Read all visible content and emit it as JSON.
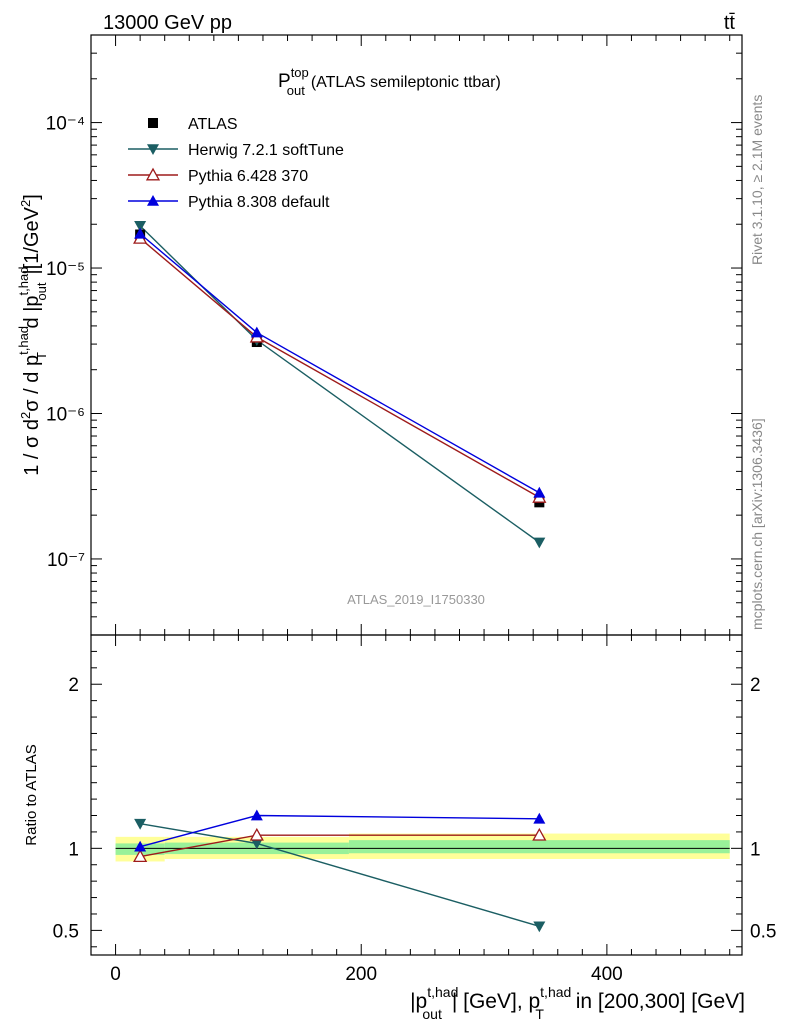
{
  "header": {
    "energy_label": "13000 GeV pp",
    "process_label": "tt̄"
  },
  "side_text": {
    "rivet": "Rivet 3.1.10, ≥ 2.1M events",
    "mcplots": "mcplots.cern.ch [arXiv:1306.3436]"
  },
  "chart_data": [
    {
      "type": "scatter",
      "panel": "main",
      "title_main": "P",
      "title_sup": "top",
      "title_sub": "out",
      "title_rest": "(ATLAS semileptonic ttbar)",
      "analysis_id": "ATLAS_2019_I1750330",
      "ylabel": "1 / σ d²σ / d p_T^t,had d |p_out^t,had| [1/GeV²]",
      "y_scale": "log",
      "ylim": [
        3e-08,
        0.0004
      ],
      "xlim": [
        -20,
        510
      ],
      "yticks_major": [
        "10⁻⁷",
        "10⁻⁶",
        "10⁻⁵",
        "10⁻⁴"
      ],
      "x": [
        20,
        115,
        345
      ],
      "series": [
        {
          "name": "ATLAS",
          "color": "#000000",
          "marker": "square",
          "values": [
            1.7e-05,
            3.1e-06,
            2.45e-07
          ]
        },
        {
          "name": "Herwig 7.2.1 softTune",
          "color": "#1b5e63",
          "marker": "triangle-down",
          "values": [
            1.95e-05,
            3.2e-06,
            1.3e-07
          ]
        },
        {
          "name": "Pythia 6.428 370",
          "color": "#9e1b1b",
          "marker": "triangle-up-open",
          "values": [
            1.6e-05,
            3.35e-06,
            2.65e-07
          ]
        },
        {
          "name": "Pythia 8.308 default",
          "color": "#0000dd",
          "marker": "triangle-up",
          "values": [
            1.72e-05,
            3.6e-06,
            2.85e-07
          ]
        }
      ],
      "legend_position": "top-left"
    },
    {
      "type": "scatter",
      "panel": "ratio",
      "ylabel": "Ratio to ATLAS",
      "ylim": [
        0.35,
        2.3
      ],
      "yticks": [
        0.5,
        1,
        2
      ],
      "ytick_labels": [
        "0.5",
        "1",
        "2"
      ],
      "xlim": [
        -20,
        510
      ],
      "xticks": [
        0,
        200,
        400
      ],
      "xtick_labels": [
        "0",
        "200",
        "400"
      ],
      "xlabel": "|p_out^t,had| [GeV], p_T^t,had in [200,300] [GeV]",
      "bands": [
        {
          "x": [
            0,
            40
          ],
          "yellow": [
            0.92,
            1.07
          ],
          "green": [
            0.96,
            1.03
          ]
        },
        {
          "x": [
            40,
            190
          ],
          "yellow": [
            0.935,
            1.07
          ],
          "green": [
            0.965,
            1.035
          ]
        },
        {
          "x": [
            190,
            500
          ],
          "yellow": [
            0.935,
            1.09
          ],
          "green": [
            0.97,
            1.05
          ]
        }
      ],
      "x": [
        20,
        115,
        345
      ],
      "series": [
        {
          "name": "Herwig 7.2.1 softTune",
          "color": "#1b5e63",
          "marker": "triangle-down",
          "values": [
            1.15,
            1.03,
            0.525
          ]
        },
        {
          "name": "Pythia 6.428 370",
          "color": "#9e1b1b",
          "marker": "triangle-up-open",
          "values": [
            0.95,
            1.08,
            1.08
          ]
        },
        {
          "name": "Pythia 8.308 default",
          "color": "#0000dd",
          "marker": "triangle-up",
          "values": [
            1.01,
            1.2,
            1.18
          ]
        }
      ]
    }
  ]
}
